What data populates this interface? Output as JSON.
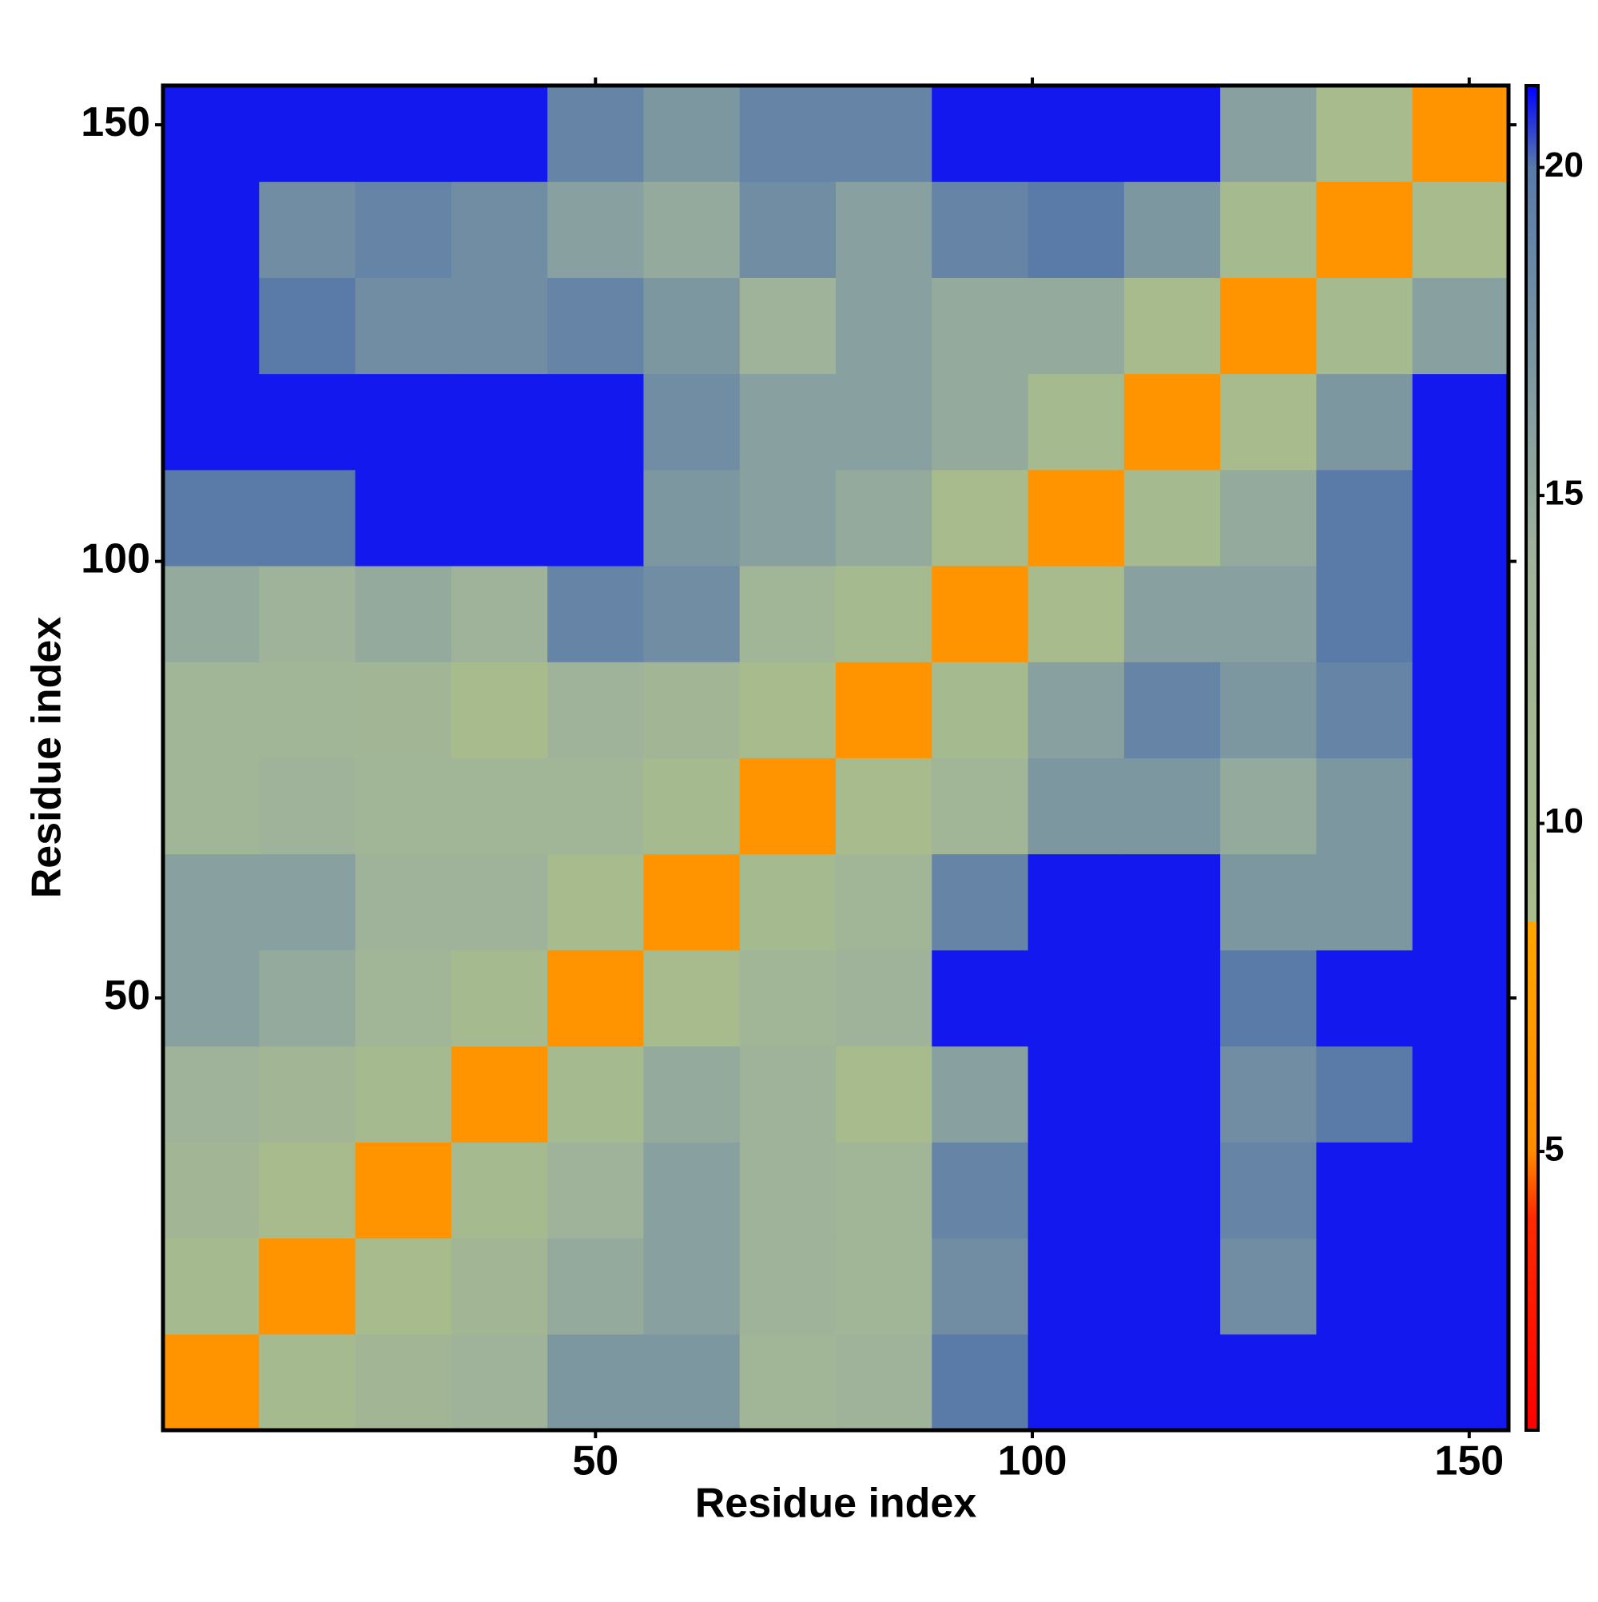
{
  "chart_data": {
    "type": "heatmap",
    "xlabel": "Residue index",
    "ylabel": "Residue index",
    "xbins": [
      0.5,
      11.5,
      22.5,
      33.5,
      44.5,
      55.5,
      66.5,
      77.5,
      88.5,
      99.5,
      110.5,
      121.5,
      132.5,
      143.5,
      154.5
    ],
    "ybins": [
      0.5,
      11.5,
      22.5,
      33.5,
      44.5,
      55.5,
      66.5,
      77.5,
      88.5,
      99.5,
      110.5,
      121.5,
      132.5,
      143.5,
      154.5
    ],
    "z": [
      [
        6,
        10,
        12,
        14,
        17,
        17,
        13,
        14,
        20,
        21,
        21,
        21,
        21,
        21
      ],
      [
        10,
        6,
        9,
        12,
        15,
        16,
        14,
        13,
        18,
        21,
        21,
        18,
        21,
        21
      ],
      [
        12,
        9,
        6,
        10,
        14,
        16,
        14,
        13,
        19,
        21,
        21,
        19,
        21,
        21
      ],
      [
        14,
        12,
        10,
        6,
        10,
        15,
        14,
        9,
        16,
        21,
        21,
        18,
        20,
        21
      ],
      [
        16,
        15,
        13,
        10,
        6,
        9,
        13,
        14,
        21,
        21,
        21,
        20,
        21,
        21
      ],
      [
        16,
        16,
        14,
        14,
        9,
        6,
        10,
        13,
        19,
        21,
        21,
        17,
        17,
        21
      ],
      [
        13,
        14,
        13,
        13,
        13,
        10,
        6,
        9,
        13,
        17,
        17,
        15,
        17,
        21
      ],
      [
        13,
        13,
        12,
        9,
        14,
        12,
        9,
        6,
        10,
        16,
        19,
        17,
        19,
        21
      ],
      [
        15,
        14,
        15,
        14,
        19,
        18,
        13,
        10,
        6,
        9,
        16,
        16,
        20,
        21
      ],
      [
        20,
        20,
        21,
        21,
        21,
        17,
        16,
        15,
        9,
        6,
        10,
        15,
        20,
        21
      ],
      [
        21,
        21,
        21,
        21,
        21,
        18,
        16,
        16,
        15,
        10,
        6,
        9,
        17,
        21
      ],
      [
        21,
        20,
        18,
        18,
        19,
        17,
        14,
        16,
        15,
        15,
        9,
        6,
        10,
        16
      ],
      [
        21,
        18,
        19,
        18,
        16,
        15,
        18,
        16,
        19,
        20,
        17,
        10,
        6,
        9
      ],
      [
        21,
        21,
        21,
        21,
        19,
        17,
        19,
        19,
        21,
        21,
        21,
        16,
        9,
        6
      ]
    ],
    "xlim": [
      0.5,
      154.5
    ],
    "ylim": [
      0.5,
      154.5
    ],
    "xticks": [
      50,
      100,
      150
    ],
    "yticks": [
      50,
      100,
      150
    ],
    "zlim": [
      0.75,
      21.25
    ],
    "zticks": [
      5,
      10,
      15,
      20
    ],
    "colorscale": [
      [
        0.75,
        "#ff0000"
      ],
      [
        4,
        "#ff2a00"
      ],
      [
        5,
        "#ff8c00"
      ],
      [
        8.5,
        "#ffa500"
      ],
      [
        8.5,
        "#a8bc8c"
      ],
      [
        14,
        "#9fb39a"
      ],
      [
        20,
        "#5a7aa8"
      ],
      [
        21.25,
        "#0000ff"
      ]
    ]
  }
}
